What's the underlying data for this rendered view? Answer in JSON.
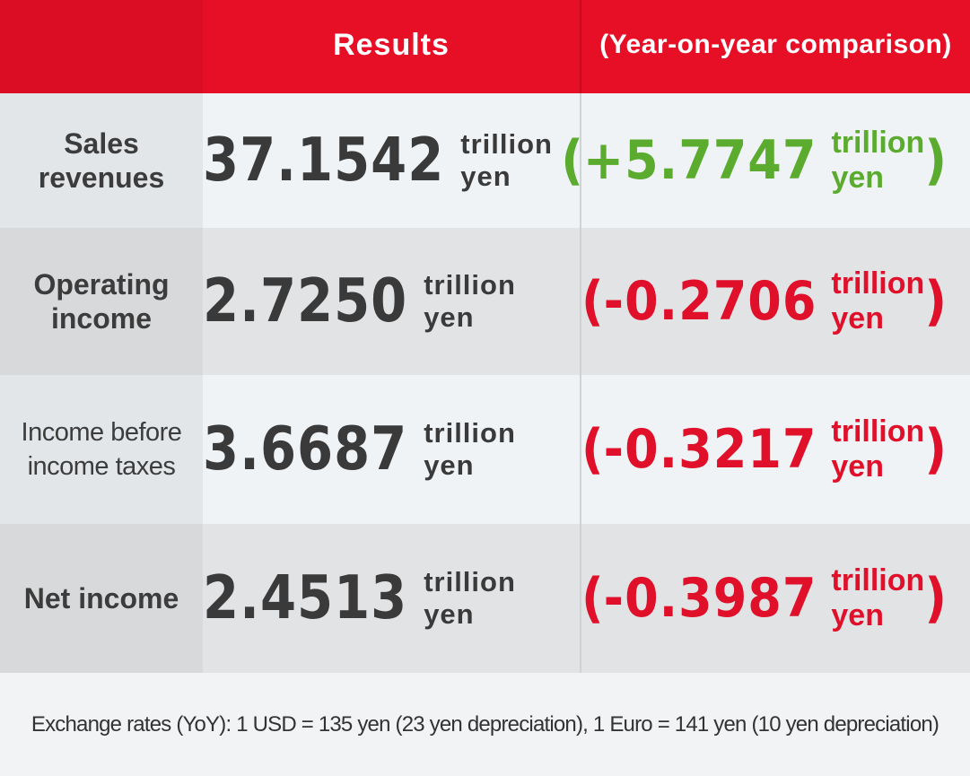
{
  "header": {
    "results": "Results",
    "yoy": "(Year-on-year comparison)"
  },
  "rows": [
    {
      "label_line1": "Sales",
      "label_line2": "revenues",
      "value": "37.1542",
      "unit": "trillion yen",
      "yoy_value": "+5.7747",
      "yoy_unit": "trillion yen",
      "yoy_color": "#5aab2e"
    },
    {
      "label_line1": "Operating",
      "label_line2": "income",
      "value": "2.7250",
      "unit": "trillion yen",
      "yoy_value": "-0.2706",
      "yoy_unit": "trillion yen",
      "yoy_color": "#e0102a"
    },
    {
      "label_line1": "Income before",
      "label_line2": "income taxes",
      "value": "3.6687",
      "unit": "trillion yen",
      "yoy_value": "-0.3217",
      "yoy_unit": "trillion yen",
      "yoy_color": "#e0102a"
    },
    {
      "label_line1": "Net income",
      "label_line2": "",
      "value": "2.4513",
      "unit": "trillion yen",
      "yoy_value": "-0.3987",
      "yoy_unit": "trillion yen",
      "yoy_color": "#e0102a"
    }
  ],
  "footer": {
    "note": "Exchange rates (YoY): 1 USD = 135 yen (23 yen depreciation), 1 Euro = 141 yen (10 yen depreciation)"
  },
  "colors": {
    "header_red": "#e60f26",
    "increase_green": "#5aab2e",
    "decrease_red": "#e0102a"
  }
}
